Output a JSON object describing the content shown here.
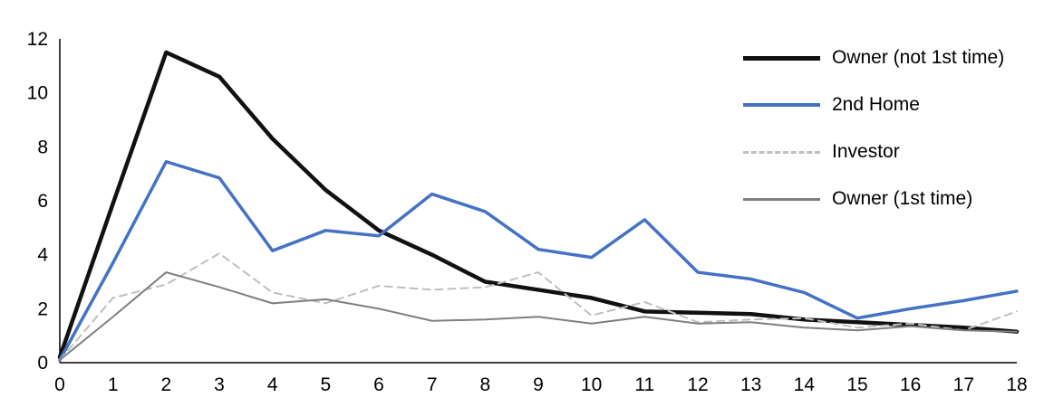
{
  "chart_data": {
    "type": "line",
    "title": "",
    "xlabel": "",
    "ylabel": "",
    "xlim": [
      0,
      18
    ],
    "ylim": [
      0,
      12
    ],
    "xticks": [
      0,
      1,
      2,
      3,
      4,
      5,
      6,
      7,
      8,
      9,
      10,
      11,
      12,
      13,
      14,
      15,
      16,
      17,
      18
    ],
    "yticks": [
      0,
      2,
      4,
      6,
      8,
      10,
      12
    ],
    "grid": false,
    "legend_position": "top-right",
    "x": [
      0,
      1,
      2,
      3,
      4,
      5,
      6,
      7,
      8,
      9,
      10,
      11,
      12,
      13,
      14,
      15,
      16,
      17,
      18
    ],
    "series": [
      {
        "name": "Owner (not 1st time)",
        "color": "#111111",
        "stroke_width": 4.5,
        "dash": "",
        "values": [
          0.2,
          5.9,
          11.5,
          10.6,
          8.3,
          6.4,
          4.9,
          4.0,
          3.0,
          2.7,
          2.4,
          1.9,
          1.85,
          1.8,
          1.6,
          1.5,
          1.4,
          1.3,
          1.15
        ]
      },
      {
        "name": "2nd Home",
        "color": "#4472C4",
        "stroke_width": 3.5,
        "dash": "",
        "values": [
          0.1,
          3.7,
          7.45,
          6.85,
          4.15,
          4.9,
          4.7,
          6.25,
          5.6,
          4.2,
          3.9,
          5.3,
          3.35,
          3.1,
          2.6,
          1.65,
          2.0,
          2.3,
          2.65
        ]
      },
      {
        "name": "Investor",
        "color": "#BFBFBF",
        "stroke_width": 2,
        "dash": "8,6",
        "values": [
          0.1,
          2.4,
          2.9,
          4.05,
          2.6,
          2.2,
          2.85,
          2.7,
          2.8,
          3.35,
          1.75,
          2.25,
          1.5,
          1.6,
          1.65,
          1.3,
          1.45,
          1.2,
          1.9
        ]
      },
      {
        "name": "Owner (1st time)",
        "color": "#7F7F7F",
        "stroke_width": 2,
        "dash": "",
        "values": [
          0.1,
          1.7,
          3.35,
          2.8,
          2.2,
          2.35,
          2.0,
          1.55,
          1.6,
          1.7,
          1.45,
          1.7,
          1.45,
          1.5,
          1.3,
          1.2,
          1.35,
          1.2,
          1.15
        ]
      }
    ]
  }
}
